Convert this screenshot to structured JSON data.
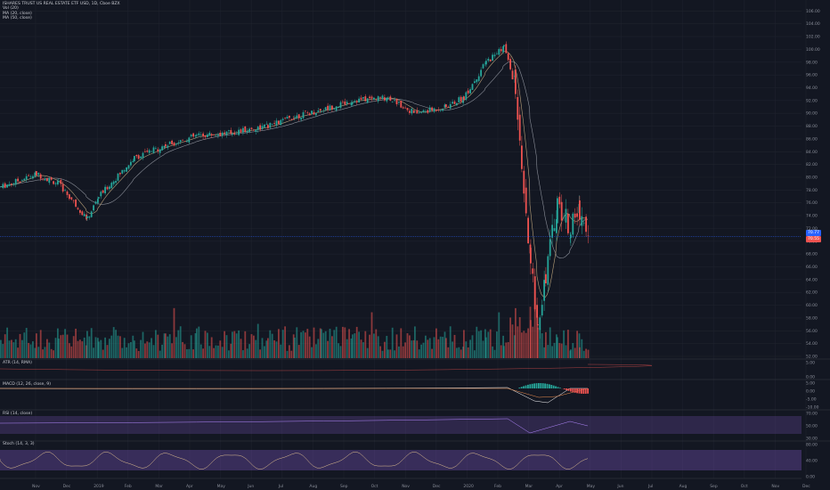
{
  "header": {
    "title": "ISHARES TRUST US REAL ESTATE ETF USD, 1D, Cboe BZX",
    "indicators": [
      "Vol (20)",
      "MA (20, close)",
      "MA (50, close)"
    ]
  },
  "panes": {
    "atr": "ATR (14, RMA)",
    "macd": "MACD (12, 26, close, 9)",
    "rsi": "RSI (14, close)",
    "stoch": "Stoch (14, 3, 3)"
  },
  "price_tags": {
    "current": "70.77",
    "second": "70.55"
  },
  "colors": {
    "up": "#26a69a",
    "down": "#ef5350",
    "ma20": "#b9a17a",
    "ma50": "#8b8f99",
    "band": "#7e57c2",
    "grid": "#1e222d",
    "hline": "#2962ff"
  },
  "chart_data": {
    "type": "line",
    "title": "ISHARES TRUST US REAL ESTATE ETF USD, 1D, Cboe BZX",
    "x_ticks": [
      "Nov",
      "Dec",
      "2019",
      "Feb",
      "Mar",
      "Apr",
      "May",
      "Jun",
      "Jul",
      "Aug",
      "Sep",
      "Oct",
      "Nov",
      "Dec",
      "2020",
      "Feb",
      "Mar",
      "Apr",
      "May",
      "Jun",
      "Jul",
      "Aug",
      "Sep",
      "Oct",
      "Nov",
      "Dec"
    ],
    "y_ticks": [
      "108.00",
      "106.00",
      "104.00",
      "102.00",
      "100.00",
      "98.00",
      "96.00",
      "94.00",
      "92.00",
      "90.00",
      "88.00",
      "86.00",
      "84.00",
      "82.00",
      "80.00",
      "78.00",
      "76.00",
      "74.00",
      "72.00",
      "70.00",
      "68.00",
      "66.00",
      "64.00",
      "62.00",
      "60.00",
      "58.00",
      "56.00",
      "54.00",
      "52.00"
    ],
    "ylim": [
      52,
      108
    ],
    "close_series": [
      [
        "Nov",
        78.5
      ],
      [
        "Dec",
        80.5
      ],
      [
        "Dec",
        79.0
      ],
      [
        "Dec",
        73.5
      ],
      [
        "2019",
        77.0
      ],
      [
        "Feb",
        83.0
      ],
      [
        "Mar",
        85.0
      ],
      [
        "Apr",
        86.5
      ],
      [
        "May",
        87.0
      ],
      [
        "Jun",
        88.0
      ],
      [
        "Jul",
        89.5
      ],
      [
        "Aug",
        90.5
      ],
      [
        "Sep",
        92.0
      ],
      [
        "Oct",
        92.5
      ],
      [
        "Nov",
        90.0
      ],
      [
        "Dec",
        91.0
      ],
      [
        "2020",
        92.5
      ],
      [
        "Feb",
        98.0
      ],
      [
        "Feb",
        100.5
      ],
      [
        "Mar",
        94.0
      ],
      [
        "Mar",
        80.0
      ],
      [
        "Mar",
        66.0
      ],
      [
        "Mar",
        57.5
      ],
      [
        "Apr",
        65.0
      ],
      [
        "Apr",
        76.0
      ],
      [
        "Apr",
        72.0
      ],
      [
        "May",
        75.0
      ],
      [
        "May",
        70.6
      ]
    ],
    "ma_note": "MA (20, close), MA (50, close)",
    "volume_series": "Vol (20)",
    "sub_axes": {
      "atr": [
        "5.00",
        "0.00"
      ],
      "macd": [
        "5.00",
        "0.00",
        "-5.00",
        "-10.00"
      ],
      "rsi": [
        "70.00",
        "50.00",
        "30.00"
      ],
      "stoch": [
        "80.00",
        "40.00",
        "0.00"
      ]
    },
    "grid": true
  }
}
